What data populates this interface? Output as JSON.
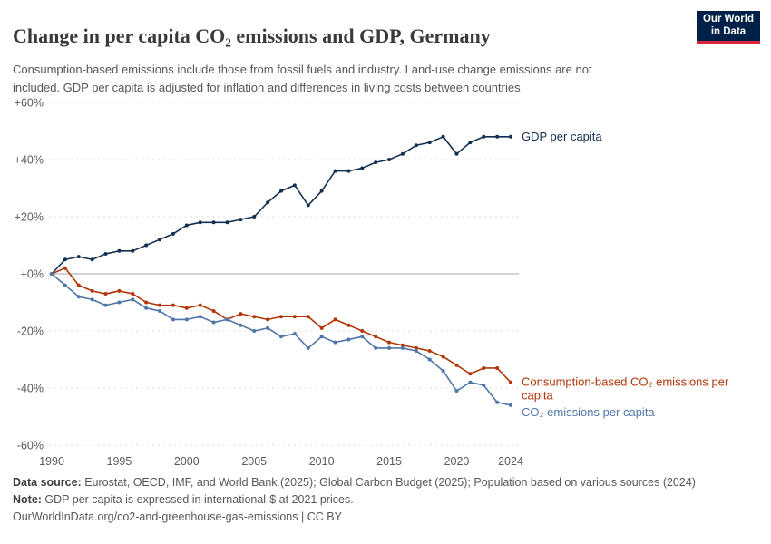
{
  "header": {
    "title": "Change in per capita CO₂ emissions and GDP, Germany",
    "subtitle": "Consumption-based emissions include those from fossil fuels and industry. Land-use change emissions are not included. GDP per capita is adjusted for inflation and differences in living costs between countries.",
    "logo": {
      "line1": "Our World",
      "line2": "in Data",
      "bg": "#002147",
      "stripe": "#d7263d"
    }
  },
  "chart_data": {
    "type": "line",
    "title": "Change in per capita CO₂ emissions and GDP, Germany",
    "x": [
      1990,
      1991,
      1992,
      1993,
      1994,
      1995,
      1996,
      1997,
      1998,
      1999,
      2000,
      2001,
      2002,
      2003,
      2004,
      2005,
      2006,
      2007,
      2008,
      2009,
      2010,
      2011,
      2012,
      2013,
      2014,
      2015,
      2016,
      2017,
      2018,
      2019,
      2020,
      2021,
      2022,
      2023,
      2024
    ],
    "series": [
      {
        "name": "GDP per capita",
        "color": "#132f50",
        "label_dy": 4,
        "values": [
          0,
          5,
          6,
          5,
          7,
          8,
          8,
          10,
          12,
          14,
          17,
          18,
          18,
          18,
          19,
          20,
          25,
          29,
          31,
          24,
          29,
          36,
          36,
          37,
          39,
          40,
          42,
          45,
          46,
          48,
          42,
          46,
          48,
          48,
          48
        ]
      },
      {
        "name": "Consumption-based CO₂ emissions per capita",
        "color": "#b13507",
        "label_dy": 4,
        "values": [
          0,
          2,
          -4,
          -6,
          -7,
          -6,
          -7,
          -10,
          -11,
          -11,
          -12,
          -11,
          -13,
          -16,
          -14,
          -15,
          -16,
          -15,
          -15,
          -15,
          -19,
          -16,
          -18,
          -20,
          -22,
          -24,
          -25,
          -26,
          -27,
          -29,
          -32,
          -35,
          -33,
          -33,
          -38
        ]
      },
      {
        "name": "CO₂ emissions per capita",
        "color": "#4f76a8",
        "label_dy": 12,
        "values": [
          0,
          -4,
          -8,
          -9,
          -11,
          -10,
          -9,
          -12,
          -13,
          -16,
          -16,
          -15,
          -17,
          -16,
          -18,
          -20,
          -19,
          -22,
          -21,
          -26,
          -22,
          -24,
          -23,
          -22,
          -26,
          -26,
          -26,
          -27,
          -30,
          -34,
          -41,
          -38,
          -39,
          -45,
          -46
        ]
      }
    ],
    "ylim": [
      -60,
      60
    ],
    "yticks": [
      {
        "value": 60,
        "label": "+60%"
      },
      {
        "value": 40,
        "label": "+40%"
      },
      {
        "value": 20,
        "label": "+20%"
      },
      {
        "value": 0,
        "label": "+0%"
      },
      {
        "value": -20,
        "label": "-20%"
      },
      {
        "value": -40,
        "label": "-40%"
      },
      {
        "value": -60,
        "label": "-60%"
      }
    ],
    "xticks": [
      1990,
      1995,
      2000,
      2005,
      2010,
      2015,
      2020,
      2024
    ],
    "grid": "horizontal-dashed",
    "legend_position": "end-of-line"
  },
  "footer": {
    "source_label": "Data source:",
    "source_text": " Eurostat, OECD, IMF, and World Bank (2025); Global Carbon Budget (2025); Population based on various sources (2024)",
    "note_label": "Note:",
    "note_text": " GDP per capita is expressed in international-$ at 2021 prices.",
    "url": "OurWorldInData.org/co2-and-greenhouse-gas-emissions | CC BY"
  }
}
